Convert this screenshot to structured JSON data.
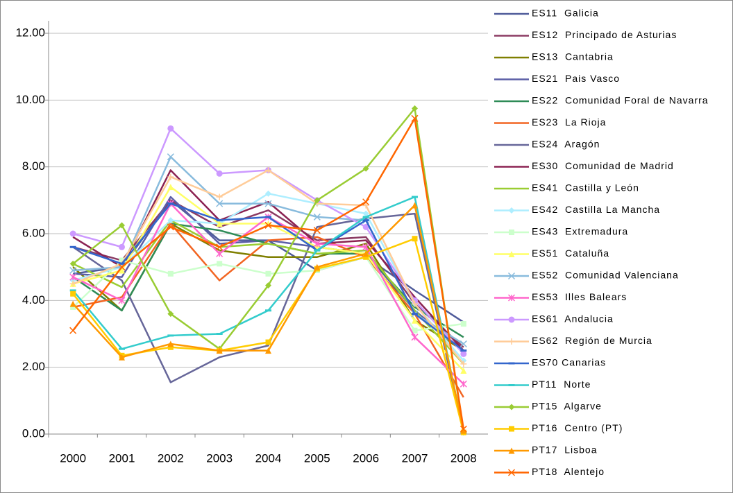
{
  "chart_data": {
    "type": "line",
    "categories": [
      "2000",
      "2001",
      "2002",
      "2003",
      "2004",
      "2005",
      "2006",
      "2007",
      "2008"
    ],
    "ylim": [
      0,
      12
    ],
    "yticks": [
      {
        "value": 0,
        "label": "0.00"
      },
      {
        "value": 2,
        "label": "2.00"
      },
      {
        "value": 4,
        "label": "4.00"
      },
      {
        "value": 6,
        "label": "6.00"
      },
      {
        "value": 8,
        "label": "8.00"
      },
      {
        "value": 10,
        "label": "10.00"
      },
      {
        "value": 12,
        "label": "12.00"
      }
    ],
    "grid": true,
    "legend": "right",
    "series": [
      {
        "name": "ES11  Galicia",
        "color": "#4f5b9a",
        "marker": "none",
        "values": [
          4.8,
          5.0,
          7.0,
          5.8,
          5.8,
          4.9,
          5.3,
          4.3,
          3.35
        ]
      },
      {
        "name": "ES12  Principado de Asturias",
        "color": "#8b3a62",
        "marker": "none",
        "values": [
          5.6,
          5.2,
          7.0,
          6.2,
          6.7,
          5.8,
          5.9,
          3.9,
          2.6
        ]
      },
      {
        "name": "ES13  Cantabria",
        "color": "#7f7f00",
        "marker": "none",
        "values": [
          5.0,
          3.7,
          6.3,
          5.5,
          5.3,
          5.3,
          5.7,
          3.4,
          2.5
        ]
      },
      {
        "name": "ES21  Pais Vasco",
        "color": "#5b5ea6",
        "marker": "none",
        "values": [
          4.8,
          4.7,
          7.1,
          5.7,
          5.8,
          5.6,
          5.4,
          3.7,
          2.5
        ]
      },
      {
        "name": "ES22  Comunidad Foral de Navarra",
        "color": "#2e8b57",
        "marker": "none",
        "values": [
          4.7,
          3.7,
          6.3,
          6.1,
          5.7,
          5.4,
          5.4,
          3.8,
          2.9
        ]
      },
      {
        "name": "ES23  La Rioja",
        "color": "#f26522",
        "marker": "none",
        "values": [
          3.8,
          4.1,
          6.3,
          4.6,
          5.8,
          5.9,
          5.3,
          3.6,
          1.1
        ]
      },
      {
        "name": "ES24  Aragón",
        "color": "#666699",
        "marker": "none",
        "values": [
          5.6,
          4.6,
          1.55,
          2.3,
          2.65,
          6.2,
          6.45,
          6.6,
          0.05
        ]
      },
      {
        "name": "ES30  Comunidad de Madrid",
        "color": "#8b2252",
        "marker": "none",
        "values": [
          5.9,
          5.0,
          7.9,
          6.4,
          6.95,
          5.7,
          5.8,
          4.1,
          2.5
        ]
      },
      {
        "name": "ES41  Castilla y León",
        "color": "#9acd32",
        "marker": "none",
        "values": [
          5.1,
          4.4,
          6.4,
          5.6,
          5.7,
          5.4,
          5.5,
          3.7,
          2.1
        ]
      },
      {
        "name": "ES42  Castilla La Mancha",
        "color": "#aeeeff",
        "marker": "diamond",
        "values": [
          4.6,
          5.0,
          6.4,
          6.3,
          7.2,
          6.9,
          6.6,
          3.9,
          2.2
        ]
      },
      {
        "name": "ES43  Extremadura",
        "color": "#ccffcc",
        "marker": "square",
        "values": [
          3.8,
          5.2,
          4.8,
          5.1,
          4.8,
          4.9,
          5.3,
          3.1,
          3.3
        ]
      },
      {
        "name": "ES51  Cataluña",
        "color": "#ffff66",
        "marker": "triangle",
        "values": [
          4.5,
          4.9,
          7.4,
          6.3,
          6.3,
          5.6,
          5.4,
          3.4,
          1.9
        ]
      },
      {
        "name": "ES52  Comunidad Valenciana",
        "color": "#88bbdd",
        "marker": "x",
        "values": [
          4.9,
          5.0,
          8.3,
          6.9,
          6.9,
          6.5,
          6.4,
          3.6,
          2.7
        ]
      },
      {
        "name": "ES53  Illes Balears",
        "color": "#ff66cc",
        "marker": "star",
        "values": [
          4.7,
          4.0,
          6.9,
          5.4,
          6.5,
          5.7,
          5.6,
          2.9,
          1.5
        ]
      },
      {
        "name": "ES61  Andalucia",
        "color": "#cc99ff",
        "marker": "circle",
        "values": [
          6.0,
          5.6,
          9.15,
          7.8,
          7.9,
          7.0,
          6.2,
          4.0,
          2.4
        ]
      },
      {
        "name": "ES62  Región de Murcia",
        "color": "#ffcc99",
        "marker": "plus",
        "values": [
          4.5,
          5.1,
          7.7,
          7.1,
          7.9,
          6.9,
          6.85,
          3.9,
          2.1
        ]
      },
      {
        "name": "ES70 Canarias",
        "color": "#3366cc",
        "marker": "dash",
        "values": [
          5.6,
          5.1,
          6.9,
          6.4,
          6.5,
          5.5,
          6.4,
          3.6,
          2.5
        ]
      },
      {
        "name": "PT11  Norte",
        "color": "#33cccc",
        "marker": "dash",
        "values": [
          4.3,
          2.55,
          2.95,
          3.0,
          3.7,
          5.5,
          6.5,
          7.1,
          0.05
        ]
      },
      {
        "name": "PT15  Algarve",
        "color": "#99cc33",
        "marker": "diamond",
        "values": [
          5.1,
          6.25,
          3.6,
          2.55,
          4.45,
          7.0,
          7.95,
          9.75,
          0.05
        ]
      },
      {
        "name": "PT16  Centro (PT)",
        "color": "#ffcc00",
        "marker": "square",
        "values": [
          4.2,
          2.35,
          2.6,
          2.5,
          2.75,
          4.95,
          5.3,
          5.85,
          0.05
        ]
      },
      {
        "name": "PT17  Lisboa",
        "color": "#ff9900",
        "marker": "triangle",
        "values": [
          3.9,
          2.3,
          2.7,
          2.5,
          2.5,
          5.0,
          5.4,
          6.85,
          0.1
        ]
      },
      {
        "name": "PT18  Alentejo",
        "color": "#ff6600",
        "marker": "x",
        "values": [
          3.1,
          5.0,
          6.2,
          5.6,
          6.25,
          6.1,
          6.95,
          9.45,
          0.15
        ]
      }
    ]
  }
}
